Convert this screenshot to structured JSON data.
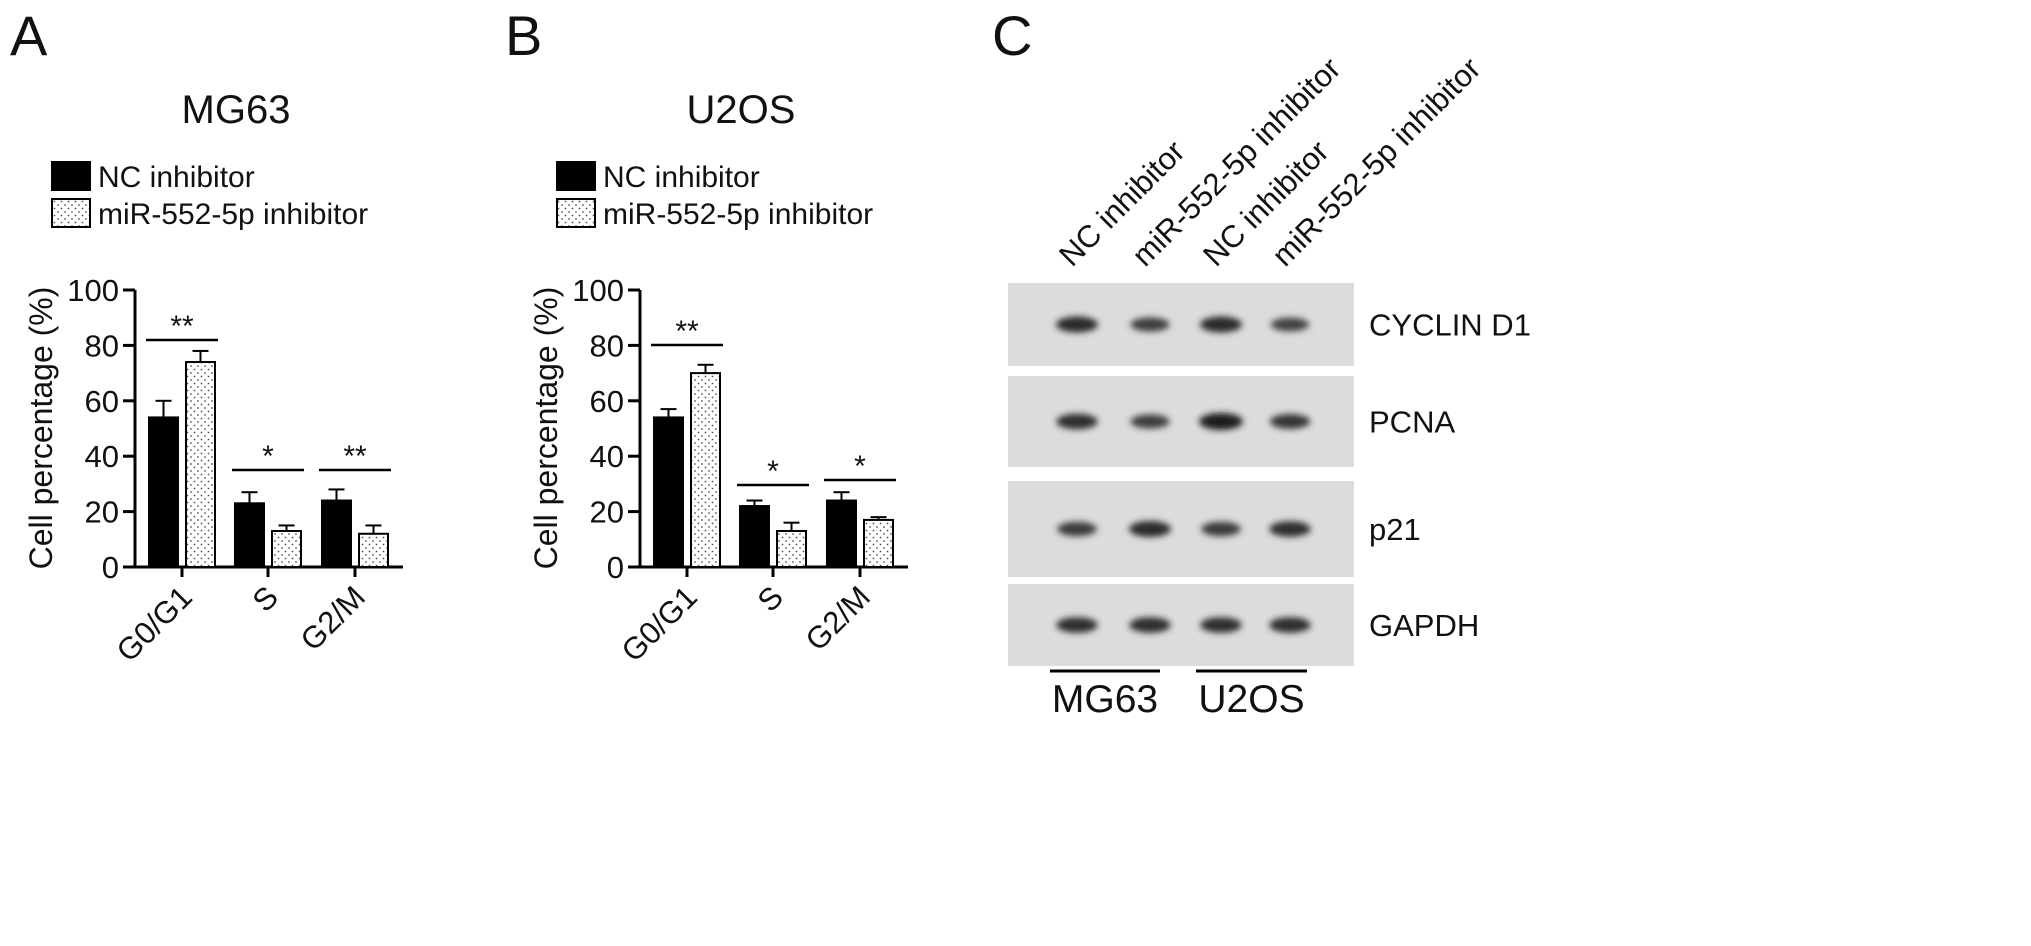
{
  "panels": {
    "a": {
      "letter": "A"
    },
    "b": {
      "letter": "B"
    },
    "c": {
      "letter": "C"
    }
  },
  "chart_data": [
    {
      "type": "bar",
      "title": "MG63",
      "ylabel": "Cell percentage (%)",
      "xlabel": "",
      "categories": [
        "G0/G1",
        "S",
        "G2/M"
      ],
      "ylim": [
        0,
        100
      ],
      "yticks": [
        "0",
        "20",
        "40",
        "60",
        "80",
        "100"
      ],
      "legend_position": "top-left",
      "series": [
        {
          "name": "NC inhibitor",
          "fill": "#000000",
          "values": [
            54,
            23,
            24
          ],
          "errors": [
            6,
            4,
            4
          ]
        },
        {
          "name": "miR-552-5p inhibitor",
          "fill": "dotted",
          "values": [
            74,
            13,
            12
          ],
          "errors": [
            4,
            2,
            3
          ]
        }
      ],
      "significance": [
        "**",
        "*",
        "**"
      ]
    },
    {
      "type": "bar",
      "title": "U2OS",
      "ylabel": "Cell percentage (%)",
      "xlabel": "",
      "categories": [
        "G0/G1",
        "S",
        "G2/M"
      ],
      "ylim": [
        0,
        100
      ],
      "yticks": [
        "0",
        "20",
        "40",
        "60",
        "80",
        "100"
      ],
      "legend_position": "top-left",
      "series": [
        {
          "name": "NC inhibitor",
          "fill": "#000000",
          "values": [
            54,
            22,
            24
          ],
          "errors": [
            3,
            2,
            3
          ]
        },
        {
          "name": "miR-552-5p inhibitor",
          "fill": "dotted",
          "values": [
            70,
            13,
            17
          ],
          "errors": [
            3,
            3,
            1
          ]
        }
      ],
      "significance": [
        "**",
        "*",
        "*"
      ]
    }
  ],
  "blot": {
    "lanes": [
      "NC inhibitor",
      "miR-552-5p inhibitor",
      "NC inhibitor",
      "miR-552-5p inhibitor"
    ],
    "rows": [
      {
        "label": "CYCLIN D1",
        "intensity": [
          0.85,
          0.6,
          0.85,
          0.55
        ]
      },
      {
        "label": "PCNA",
        "intensity": [
          0.8,
          0.6,
          1.0,
          0.7
        ]
      },
      {
        "label": "p21",
        "intensity": [
          0.65,
          0.85,
          0.65,
          0.8
        ]
      },
      {
        "label": "GAPDH",
        "intensity": [
          0.8,
          0.8,
          0.8,
          0.8
        ]
      }
    ],
    "groups": [
      "MG63",
      "U2OS"
    ]
  }
}
